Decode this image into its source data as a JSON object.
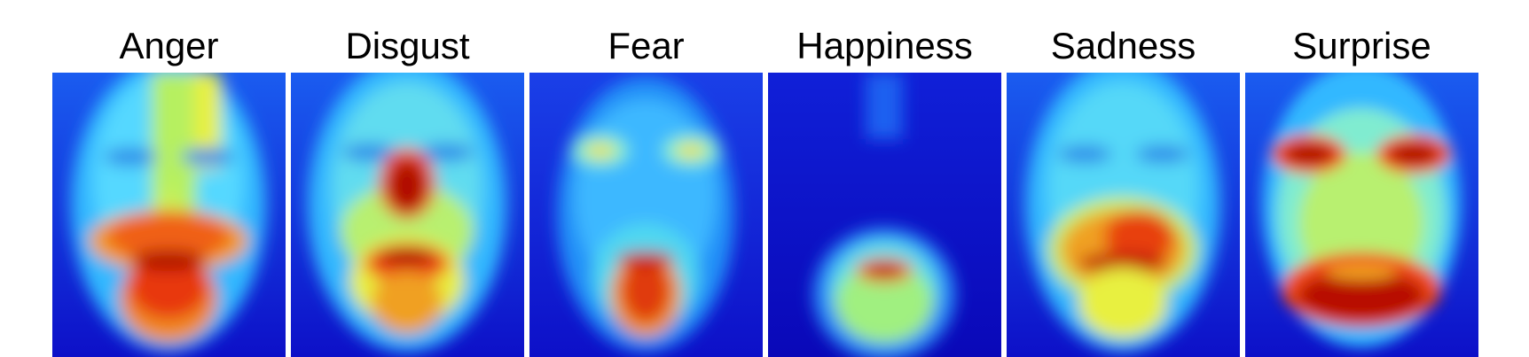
{
  "figure": {
    "panels": [
      {
        "label": "Anger",
        "variant": "anger"
      },
      {
        "label": "Disgust",
        "variant": "disgust"
      },
      {
        "label": "Fear",
        "variant": "fear"
      },
      {
        "label": "Happiness",
        "variant": "happiness"
      },
      {
        "label": "Sadness",
        "variant": "sadness"
      },
      {
        "label": "Surprise",
        "variant": "surprise"
      }
    ]
  },
  "colormap": {
    "low": "#1010d8",
    "mid_low": "#2aa8ff",
    "mid": "#7fffd0",
    "mid_high": "#f6f030",
    "high": "#e8400c",
    "max": "#a00000"
  }
}
